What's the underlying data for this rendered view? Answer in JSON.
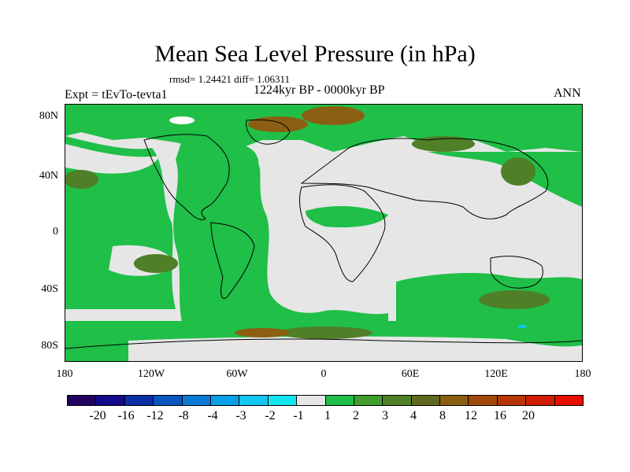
{
  "title": "Mean Sea Level Pressure (in hPa)",
  "stats": "rmsd= 1.24421 diff= 1.06311",
  "experiment": "Expt = tEvTo-tevta1",
  "period": "1224kyr BP - 0000kyr BP",
  "season": "ANN",
  "y_axis": {
    "ticks": [
      "80N",
      "40N",
      "0",
      "40S",
      "80S"
    ]
  },
  "x_axis": {
    "ticks": [
      "180",
      "120W",
      "60W",
      "0",
      "60E",
      "120E",
      "180"
    ]
  },
  "colorbar": {
    "colors": [
      "#21005e",
      "#130a8c",
      "#0c2fa8",
      "#0a55bf",
      "#0a7ad6",
      "#089fe6",
      "#12c8f0",
      "#12e6f0",
      "#e6e6e6",
      "#1fbf48",
      "#3f9e2e",
      "#4f7f27",
      "#60681f",
      "#8a5f12",
      "#a0480c",
      "#b83508",
      "#cf1d05",
      "#e60f00"
    ],
    "labels": [
      "-20",
      "-16",
      "-12",
      "-8",
      "-4",
      "-3",
      "-2",
      "-1",
      "1",
      "2",
      "3",
      "4",
      "8",
      "12",
      "16",
      "20"
    ]
  },
  "palette": {
    "grey": "#e6e6e6",
    "green": "#1fbf48",
    "dark_green": "#4f7f27",
    "brown": "#8a5f12",
    "white": "#ffffff",
    "cyan": "#12c8f0"
  }
}
